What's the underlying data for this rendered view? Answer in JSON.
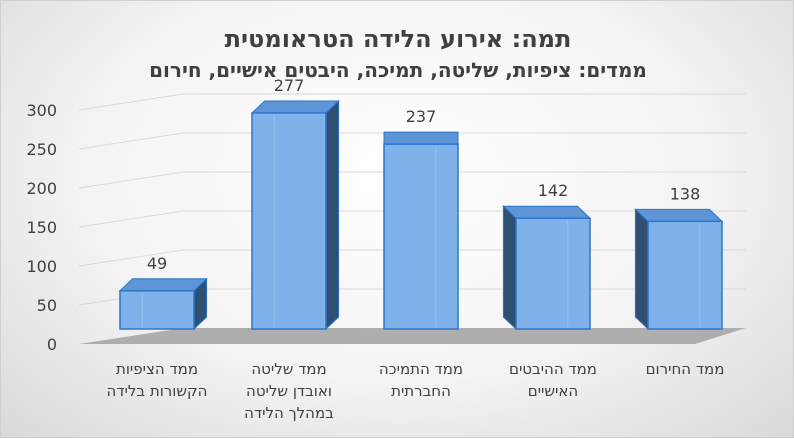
{
  "chart_data": {
    "type": "bar",
    "title": "תמה: אירוע הלידה הטראומטית",
    "subtitle": "ממדים: ציפיות, שליטה, תמיכה, היבטים אישיים, חירום",
    "categories": [
      [
        "ממד הציפיות",
        "הקשורות בלידה"
      ],
      [
        "ממד שליטה",
        "ואובדן שליטה",
        "במהלך הלידה"
      ],
      [
        "ממד התמיכה",
        "החברתית"
      ],
      [
        "ממד ההיבטים",
        "האישיים"
      ],
      [
        "ממד החירום"
      ]
    ],
    "values": [
      49,
      277,
      237,
      142,
      138
    ],
    "yticks": [
      0,
      50,
      100,
      150,
      200,
      250,
      300
    ],
    "ylim": [
      0,
      300
    ],
    "grid": true,
    "colors": {
      "bar_front": "#7fb2ea",
      "bar_top": "#5d95d6",
      "bar_side": "#2f4f73",
      "bar_edge": "#2e75c8",
      "floor": "#a6a6a6"
    }
  }
}
